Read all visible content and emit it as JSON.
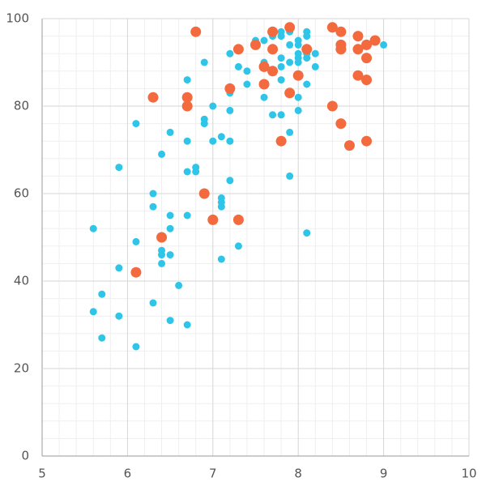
{
  "chart_data": {
    "type": "scatter",
    "series": [
      {
        "color": "#2ec5e8",
        "radius": 4.5,
        "x": [
          7.5,
          7.6,
          7.7,
          7.8,
          7.8,
          7.9,
          8.0,
          8.0,
          8.1,
          8.1,
          7.9,
          8.0,
          8.0,
          8.0,
          8.1,
          8.1,
          8.2,
          7.9,
          7.8,
          7.6,
          7.3,
          7.4,
          8.2,
          7.8,
          7.7,
          7.8,
          8.1,
          7.4,
          7.2,
          6.9,
          6.7,
          7.2,
          7.6,
          8.0,
          7.0,
          7.2,
          8.0,
          7.7,
          7.8,
          6.9,
          6.9,
          6.1,
          6.5,
          7.9,
          7.1,
          7.0,
          7.2,
          6.7,
          6.4,
          5.9,
          6.8,
          6.7,
          6.8,
          7.9,
          7.2,
          6.3,
          7.1,
          7.1,
          7.1,
          6.3,
          6.5,
          6.7,
          5.6,
          6.5,
          8.1,
          6.4,
          6.1,
          7.3,
          6.4,
          6.4,
          6.5,
          7.1,
          6.4,
          5.9,
          6.6,
          5.7,
          6.3,
          5.6,
          5.9,
          6.5,
          6.7,
          5.7,
          6.1,
          9.0
        ],
        "values": [
          95,
          95,
          96,
          96,
          97,
          97,
          95,
          94,
          97,
          96,
          94,
          92,
          91,
          90,
          92,
          91,
          92,
          90,
          91,
          90,
          89,
          88,
          89,
          89,
          88,
          86,
          85,
          85,
          92,
          90,
          86,
          83,
          82,
          82,
          80,
          79,
          79,
          78,
          78,
          77,
          76,
          76,
          74,
          74,
          73,
          72,
          72,
          72,
          69,
          66,
          66,
          65,
          65,
          64,
          63,
          60,
          59,
          58,
          57,
          57,
          55,
          55,
          52,
          52,
          51,
          50,
          49,
          48,
          47,
          46,
          46,
          45,
          44,
          43,
          39,
          37,
          35,
          33,
          32,
          31,
          30,
          27,
          25,
          94
        ]
      },
      {
        "color": "#f26a3d",
        "radius": 6.5,
        "x": [
          6.8,
          7.9,
          7.7,
          8.4,
          8.5,
          8.7,
          8.9,
          8.8,
          8.5,
          8.5,
          8.7,
          7.3,
          7.5,
          7.7,
          8.1,
          8.8,
          7.6,
          7.7,
          8.0,
          8.7,
          8.8,
          7.6,
          7.2,
          7.9,
          6.3,
          6.7,
          6.7,
          8.4,
          8.5,
          7.8,
          8.6,
          8.8,
          6.9,
          7.0,
          7.3,
          6.4,
          6.1
        ],
        "values": [
          97,
          98,
          97,
          98,
          97,
          96,
          95,
          94,
          94,
          93,
          93,
          93,
          94,
          93,
          93,
          91,
          89,
          88,
          87,
          87,
          86,
          85,
          84,
          83,
          82,
          82,
          80,
          80,
          76,
          72,
          71,
          72,
          60,
          54,
          54,
          50,
          42
        ]
      }
    ],
    "xlim": [
      5,
      10
    ],
    "xticks": [
      5,
      6,
      7,
      8,
      9,
      10
    ],
    "ylim": [
      0,
      100
    ],
    "yticks": [
      0,
      20,
      40,
      60,
      80,
      100
    ],
    "grid": true,
    "minor_grid": true
  }
}
